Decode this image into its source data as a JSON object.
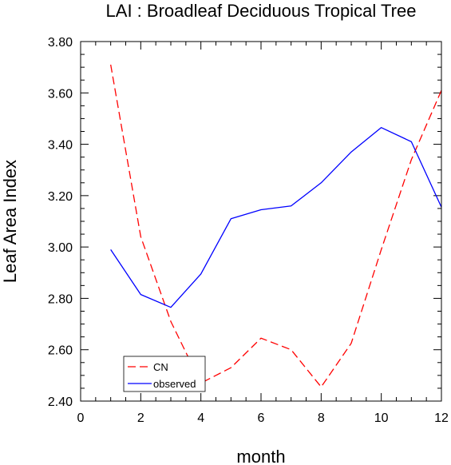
{
  "chart_data": {
    "type": "line",
    "title": "LAI : Broadleaf Deciduous Tropical Tree",
    "xlabel": "month",
    "ylabel": "Leaf Area Index",
    "xlim": [
      0,
      12
    ],
    "ylim": [
      2.4,
      3.8
    ],
    "x_ticks": [
      0,
      2,
      4,
      6,
      8,
      10,
      12
    ],
    "x_tick_labels": [
      "0",
      "2",
      "4",
      "6",
      "8",
      "10",
      "12"
    ],
    "y_ticks": [
      2.4,
      2.6,
      2.8,
      3.0,
      3.2,
      3.4,
      3.6,
      3.8
    ],
    "y_tick_labels": [
      "2.40",
      "2.60",
      "2.80",
      "3.00",
      "3.20",
      "3.40",
      "3.60",
      "3.80"
    ],
    "x_minor_step": 0.5,
    "y_minor_step": 0.05,
    "grid": false,
    "legend_position": "bottom-left",
    "x": [
      1,
      2,
      3,
      4,
      5,
      6,
      7,
      8,
      9,
      10,
      11,
      12
    ],
    "series": [
      {
        "name": "CN",
        "color": "#ff0000",
        "style": "dashed",
        "values": [
          3.71,
          3.04,
          2.71,
          2.47,
          2.53,
          2.645,
          2.6,
          2.455,
          2.625,
          2.99,
          3.34,
          3.61
        ]
      },
      {
        "name": "observed",
        "color": "#0000ff",
        "style": "solid",
        "values": [
          2.99,
          2.815,
          2.765,
          2.895,
          3.11,
          3.145,
          3.16,
          3.25,
          3.37,
          3.465,
          3.41,
          3.155
        ]
      }
    ]
  }
}
